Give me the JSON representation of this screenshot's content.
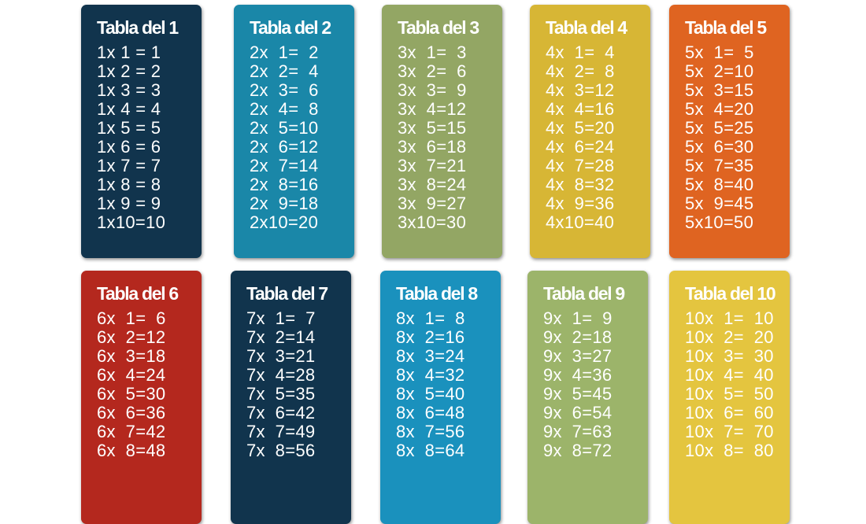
{
  "cards": [
    {
      "title": "Tabla del 1",
      "color": "#11344d",
      "lines": [
        "1x 1 = 1",
        "1x 2 = 2",
        "1x 3 = 3",
        "1x 4 = 4",
        "1x 5 = 5",
        "1x 6 = 6",
        "1x 7 = 7",
        "1x 8 = 8",
        "1x 9 = 9",
        "1x10=10"
      ]
    },
    {
      "title": "Tabla del 2",
      "color": "#1a87a8",
      "lines": [
        "2x  1=  2",
        "2x  2=  4",
        "2x  3=  6",
        "2x  4=  8",
        "2x  5=10",
        "2x  6=12",
        "2x  7=14",
        "2x  8=16",
        "2x  9=18",
        "2x10=20"
      ]
    },
    {
      "title": "Tabla del 3",
      "color": "#93a664",
      "lines": [
        "3x  1=  3",
        "3x  2=  6",
        "3x  3=  9",
        "3x  4=12",
        "3x  5=15",
        "3x  6=18",
        "3x  7=21",
        "3x  8=24",
        "3x  9=27",
        "3x10=30"
      ]
    },
    {
      "title": "Tabla del 4",
      "color": "#d7b635",
      "lines": [
        "4x  1=  4",
        "4x  2=  8",
        "4x  3=12",
        "4x  4=16",
        "4x  5=20",
        "4x  6=24",
        "4x  7=28",
        "4x  8=32",
        "4x  9=36",
        "4x10=40"
      ]
    },
    {
      "title": "Tabla del 5",
      "color": "#df6421",
      "lines": [
        "5x  1=  5",
        "5x  2=10",
        "5x  3=15",
        "5x  4=20",
        "5x  5=25",
        "5x  6=30",
        "5x  7=35",
        "5x  8=40",
        "5x  9=45",
        "5x10=50"
      ]
    },
    {
      "title": "Tabla del 6",
      "color": "#b4281e",
      "lines": [
        "6x  1=  6",
        "6x  2=12",
        "6x  3=18",
        "6x  4=24",
        "6x  5=30",
        "6x  6=36",
        "6x  7=42",
        "6x  8=48"
      ]
    },
    {
      "title": "Tabla del 7",
      "color": "#11344d",
      "lines": [
        "7x  1=  7",
        "7x  2=14",
        "7x  3=21",
        "7x  4=28",
        "7x  5=35",
        "7x  6=42",
        "7x  7=49",
        "7x  8=56"
      ]
    },
    {
      "title": "Tabla del 8",
      "color": "#1a91bd",
      "lines": [
        "8x  1=  8",
        "8x  2=16",
        "8x  3=24",
        "8x  4=32",
        "8x  5=40",
        "8x  6=48",
        "8x  7=56",
        "8x  8=64"
      ]
    },
    {
      "title": "Tabla del 9",
      "color": "#9cb46a",
      "lines": [
        "9x  1=  9",
        "9x  2=18",
        "9x  3=27",
        "9x  4=36",
        "9x  5=45",
        "9x  6=54",
        "9x  7=63",
        "9x  8=72"
      ]
    },
    {
      "title": "Tabla del 10",
      "color": "#e4c53f",
      "lines": [
        "10x  1=  10",
        "10x  2=  20",
        "10x  3=  30",
        "10x  4=  40",
        "10x  5=  50",
        "10x  6=  60",
        "10x  7=  70",
        "10x  8=  80"
      ]
    }
  ]
}
